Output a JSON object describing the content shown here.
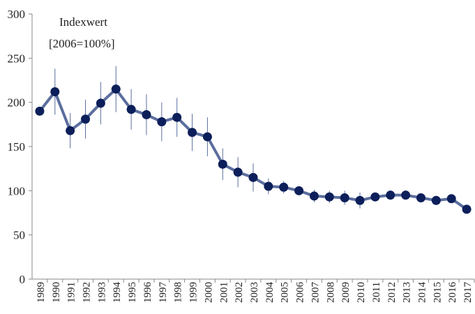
{
  "chart_data": {
    "type": "line",
    "annotations": [
      "Indexwert",
      "[2006=100%]"
    ],
    "categories": [
      "1989",
      "1990",
      "1991",
      "1992",
      "1993",
      "1994",
      "1995",
      "1996",
      "1997",
      "1998",
      "1999",
      "2000",
      "2001",
      "2002",
      "2003",
      "2004",
      "2005",
      "2006",
      "2007",
      "2008",
      "2009",
      "2010",
      "2011",
      "2012",
      "2013",
      "2014",
      "2015",
      "2016",
      "2017"
    ],
    "series": [
      {
        "line_color": "#5b6e9e",
        "marker_color": "#0c1f5a",
        "values": [
          190,
          212,
          168,
          181,
          199,
          215,
          192,
          186,
          178,
          183,
          166,
          161,
          130,
          121,
          115,
          105,
          104,
          100,
          94,
          93,
          92,
          89,
          93,
          95,
          95,
          92,
          89,
          91,
          79
        ],
        "errors": [
          3,
          26,
          20,
          22,
          24,
          26,
          23,
          23,
          22,
          22,
          21,
          22,
          18,
          17,
          16,
          9,
          7,
          3,
          7,
          7,
          8,
          9,
          4,
          4,
          5,
          3,
          3,
          3,
          3
        ]
      }
    ],
    "ylim": [
      0,
      300
    ],
    "yticks": [
      0,
      50,
      100,
      150,
      200,
      250,
      300
    ]
  }
}
